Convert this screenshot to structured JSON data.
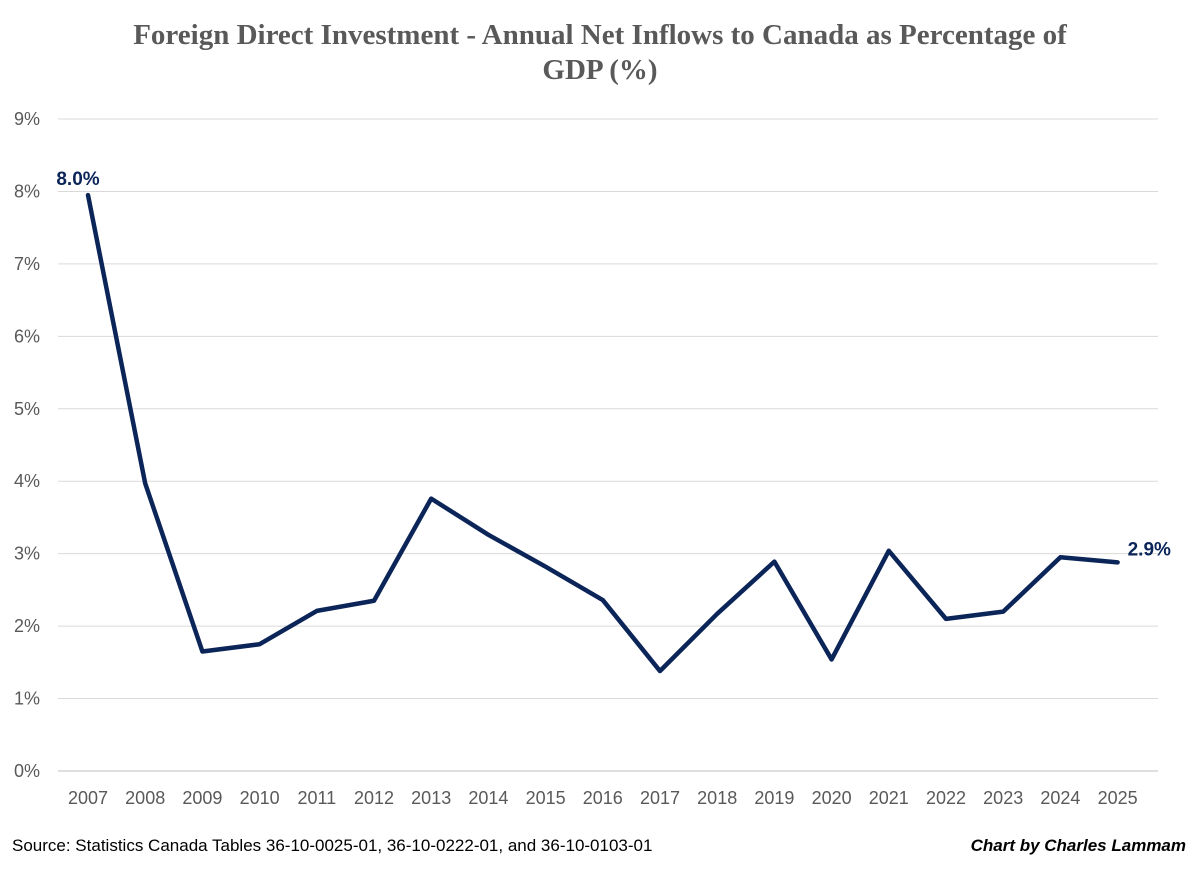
{
  "chart_data": {
    "type": "line",
    "title": "Foreign Direct Investment - Annual Net Inflows to Canada as Percentage of GDP (%)",
    "xlabel": "",
    "ylabel": "",
    "x": [
      "2007",
      "2008",
      "2009",
      "2010",
      "2011",
      "2012",
      "2013",
      "2014",
      "2015",
      "2016",
      "2017",
      "2018",
      "2019",
      "2020",
      "2021",
      "2022",
      "2023",
      "2024",
      "2025"
    ],
    "series": [
      {
        "values": [
          7.95,
          3.97,
          1.65,
          1.75,
          2.21,
          2.35,
          3.76,
          3.26,
          2.82,
          2.36,
          1.38,
          2.17,
          2.89,
          1.54,
          3.04,
          2.1,
          2.2,
          2.95,
          2.88
        ],
        "color": "#0b2559"
      }
    ],
    "ylim": [
      0,
      9
    ],
    "yticks": [
      "0%",
      "1%",
      "2%",
      "3%",
      "4%",
      "5%",
      "6%",
      "7%",
      "8%",
      "9%"
    ],
    "data_labels": [
      {
        "index": 0,
        "text": "8.0%"
      },
      {
        "index": 18,
        "text": "2.9%"
      }
    ],
    "grid": true,
    "legend": "none"
  },
  "footer": {
    "source": "Source: Statistics Canada Tables 36-10-0025-01, 36-10-0222-01, and 36-10-0103-01",
    "credit": "Chart by Charles Lammam"
  }
}
